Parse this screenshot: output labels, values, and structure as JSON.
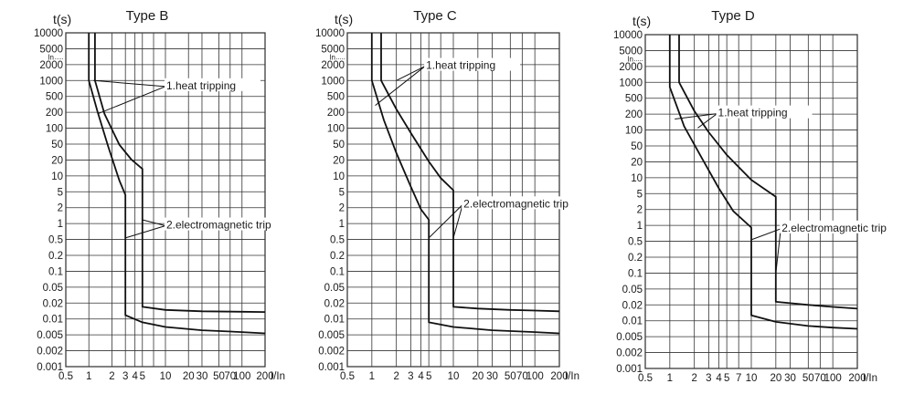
{
  "chart_data": [
    {
      "type": "line",
      "title": "Type B",
      "ylabel": "t(s)",
      "xlabel": "I/In",
      "xscale": "log",
      "yscale": "log",
      "xlim": [
        0.5,
        200
      ],
      "ylim": [
        0.001,
        10000
      ],
      "grid": true,
      "x_ticks": [
        "0.5",
        "1",
        "2",
        "3",
        "4",
        "5",
        "7",
        "10",
        "20",
        "30",
        "50",
        "70",
        "100",
        "200"
      ],
      "x_tick_labels": [
        "0.5",
        "1",
        "2",
        "3",
        "4",
        "5",
        "10",
        "20",
        "30",
        "50",
        "70",
        "100",
        "200"
      ],
      "y_ticks": [
        "10000",
        "5000",
        "2000",
        "1000",
        "500",
        "200",
        "100",
        "50",
        "20",
        "10",
        "5",
        "2",
        "1",
        "0.5",
        "0.2",
        "0.1",
        "0.05",
        "0.02",
        "0.01",
        "0.005",
        "0.002",
        "0.001"
      ],
      "y_ticks_extra": [
        "In"
      ],
      "series": [
        {
          "name": "",
          "points": [
            [
              1,
              10000
            ],
            [
              1,
              1000
            ],
            [
              1.3,
              220
            ],
            [
              1.8,
              40
            ],
            [
              2.5,
              8
            ],
            [
              3,
              4
            ],
            [
              3,
              0.012
            ],
            [
              5,
              0.0085
            ],
            [
              10,
              0.0068
            ],
            [
              30,
              0.0058
            ],
            [
              100,
              0.0053
            ],
            [
              200,
              0.005
            ]
          ]
        },
        {
          "name": "",
          "points": [
            [
              1.2,
              10000
            ],
            [
              1.2,
              1000
            ],
            [
              1.6,
              200
            ],
            [
              2.5,
              45
            ],
            [
              3.6,
              22
            ],
            [
              5,
              14
            ],
            [
              5,
              0.018
            ],
            [
              10,
              0.0155
            ],
            [
              30,
              0.0145
            ],
            [
              100,
              0.0142
            ],
            [
              200,
              0.014
            ]
          ]
        }
      ],
      "annotations": [
        {
          "text": "1.heat tripping",
          "x": 10,
          "y": 750,
          "targets": [
            [
              1.15,
              1000
            ],
            [
              1.3,
              200
            ]
          ]
        },
        {
          "text": "2.electromagnetic trip",
          "x": 10,
          "y": 0.9,
          "targets": [
            [
              5,
              1.2
            ],
            [
              3,
              0.5
            ]
          ]
        }
      ]
    },
    {
      "type": "line",
      "title": "Type C",
      "ylabel": "t(s)",
      "xlabel": "I/In",
      "xscale": "log",
      "yscale": "log",
      "xlim": [
        0.5,
        200
      ],
      "ylim": [
        0.001,
        10000
      ],
      "grid": true,
      "x_ticks": [
        "0.5",
        "1",
        "2",
        "3",
        "4",
        "5",
        "7",
        "10",
        "20",
        "30",
        "50",
        "70",
        "100",
        "200"
      ],
      "x_tick_labels": [
        "0.5",
        "1",
        "2",
        "3",
        "4",
        "5",
        "10",
        "20",
        "30",
        "50",
        "70",
        "100",
        "200"
      ],
      "y_ticks": [
        "10000",
        "5000",
        "2000",
        "1000",
        "500",
        "200",
        "100",
        "50",
        "20",
        "10",
        "5",
        "2",
        "1",
        "0.5",
        "0.2",
        "0.1",
        "0.05",
        "0.02",
        "0.01",
        "0.005",
        "0.002",
        "0.001"
      ],
      "y_ticks_extra": [
        "In"
      ],
      "series": [
        {
          "name": "",
          "points": [
            [
              1,
              10000
            ],
            [
              1,
              1000
            ],
            [
              1.4,
              150
            ],
            [
              2,
              30
            ],
            [
              3,
              6
            ],
            [
              4,
              2
            ],
            [
              5,
              1.2
            ],
            [
              5,
              0.0085
            ],
            [
              10,
              0.0068
            ],
            [
              30,
              0.0058
            ],
            [
              100,
              0.0053
            ],
            [
              200,
              0.005
            ]
          ]
        },
        {
          "name": "",
          "points": [
            [
              1.3,
              10000
            ],
            [
              1.3,
              1000
            ],
            [
              2,
              250
            ],
            [
              3,
              80
            ],
            [
              5,
              20
            ],
            [
              7,
              9
            ],
            [
              10,
              5
            ],
            [
              10,
              0.018
            ],
            [
              20,
              0.0165
            ],
            [
              50,
              0.0155
            ],
            [
              100,
              0.015
            ],
            [
              200,
              0.0145
            ]
          ]
        }
      ],
      "annotations": [
        {
          "text": "1.heat tripping",
          "x": 4.5,
          "y": 2000,
          "targets": [
            [
              1.1,
              300
            ],
            [
              2,
              1000
            ]
          ]
        },
        {
          "text": "2.electromagnetic trip",
          "x": 13,
          "y": 2.5,
          "targets": [
            [
              5,
              0.5
            ],
            [
              10,
              0.5
            ]
          ]
        }
      ]
    },
    {
      "type": "line",
      "title": "Type D",
      "ylabel": "t(s)",
      "xlabel": "I/In",
      "xscale": "log",
      "yscale": "log",
      "xlim": [
        0.5,
        200
      ],
      "ylim": [
        0.001,
        10000
      ],
      "grid": true,
      "x_ticks": [
        "0.5",
        "1",
        "2",
        "3",
        "4",
        "5",
        "7",
        "10",
        "20",
        "30",
        "50",
        "70",
        "100",
        "200"
      ],
      "x_tick_labels": [
        "0.5",
        "1",
        "2",
        "3",
        "4",
        "5",
        "7",
        "10",
        "20",
        "30",
        "50",
        "70",
        "100",
        "200"
      ],
      "y_ticks": [
        "10000",
        "5000",
        "2000",
        "1000",
        "500",
        "200",
        "100",
        "50",
        "20",
        "10",
        "5",
        "2",
        "1",
        "0.5",
        "0.2",
        "0.1",
        "0.05",
        "0.02",
        "0.01",
        "0.005",
        "0.002",
        "0.001"
      ],
      "y_ticks_extra": [
        "In"
      ],
      "series": [
        {
          "name": "",
          "points": [
            [
              1,
              10000
            ],
            [
              1,
              800
            ],
            [
              1.5,
              120
            ],
            [
              2.5,
              25
            ],
            [
              4,
              6
            ],
            [
              6,
              2
            ],
            [
              10,
              0.9
            ],
            [
              10,
              0.013
            ],
            [
              20,
              0.0095
            ],
            [
              50,
              0.0078
            ],
            [
              100,
              0.0072
            ],
            [
              200,
              0.0068
            ]
          ]
        },
        {
          "name": "",
          "points": [
            [
              1.3,
              10000
            ],
            [
              1.3,
              1000
            ],
            [
              2,
              250
            ],
            [
              3,
              90
            ],
            [
              5,
              30
            ],
            [
              10,
              9
            ],
            [
              20,
              4
            ],
            [
              20,
              0.025
            ],
            [
              50,
              0.0215
            ],
            [
              100,
              0.0195
            ],
            [
              200,
              0.018
            ]
          ]
        }
      ],
      "annotations": [
        {
          "text": "1.heat tripping",
          "x": 3.8,
          "y": 220,
          "targets": [
            [
              1.15,
              170
            ],
            [
              2.2,
              110
            ]
          ]
        },
        {
          "text": "2.electromagnetic trip",
          "x": 23,
          "y": 0.85,
          "targets": [
            [
              10,
              0.5
            ],
            [
              20,
              0.1
            ]
          ]
        }
      ]
    }
  ]
}
